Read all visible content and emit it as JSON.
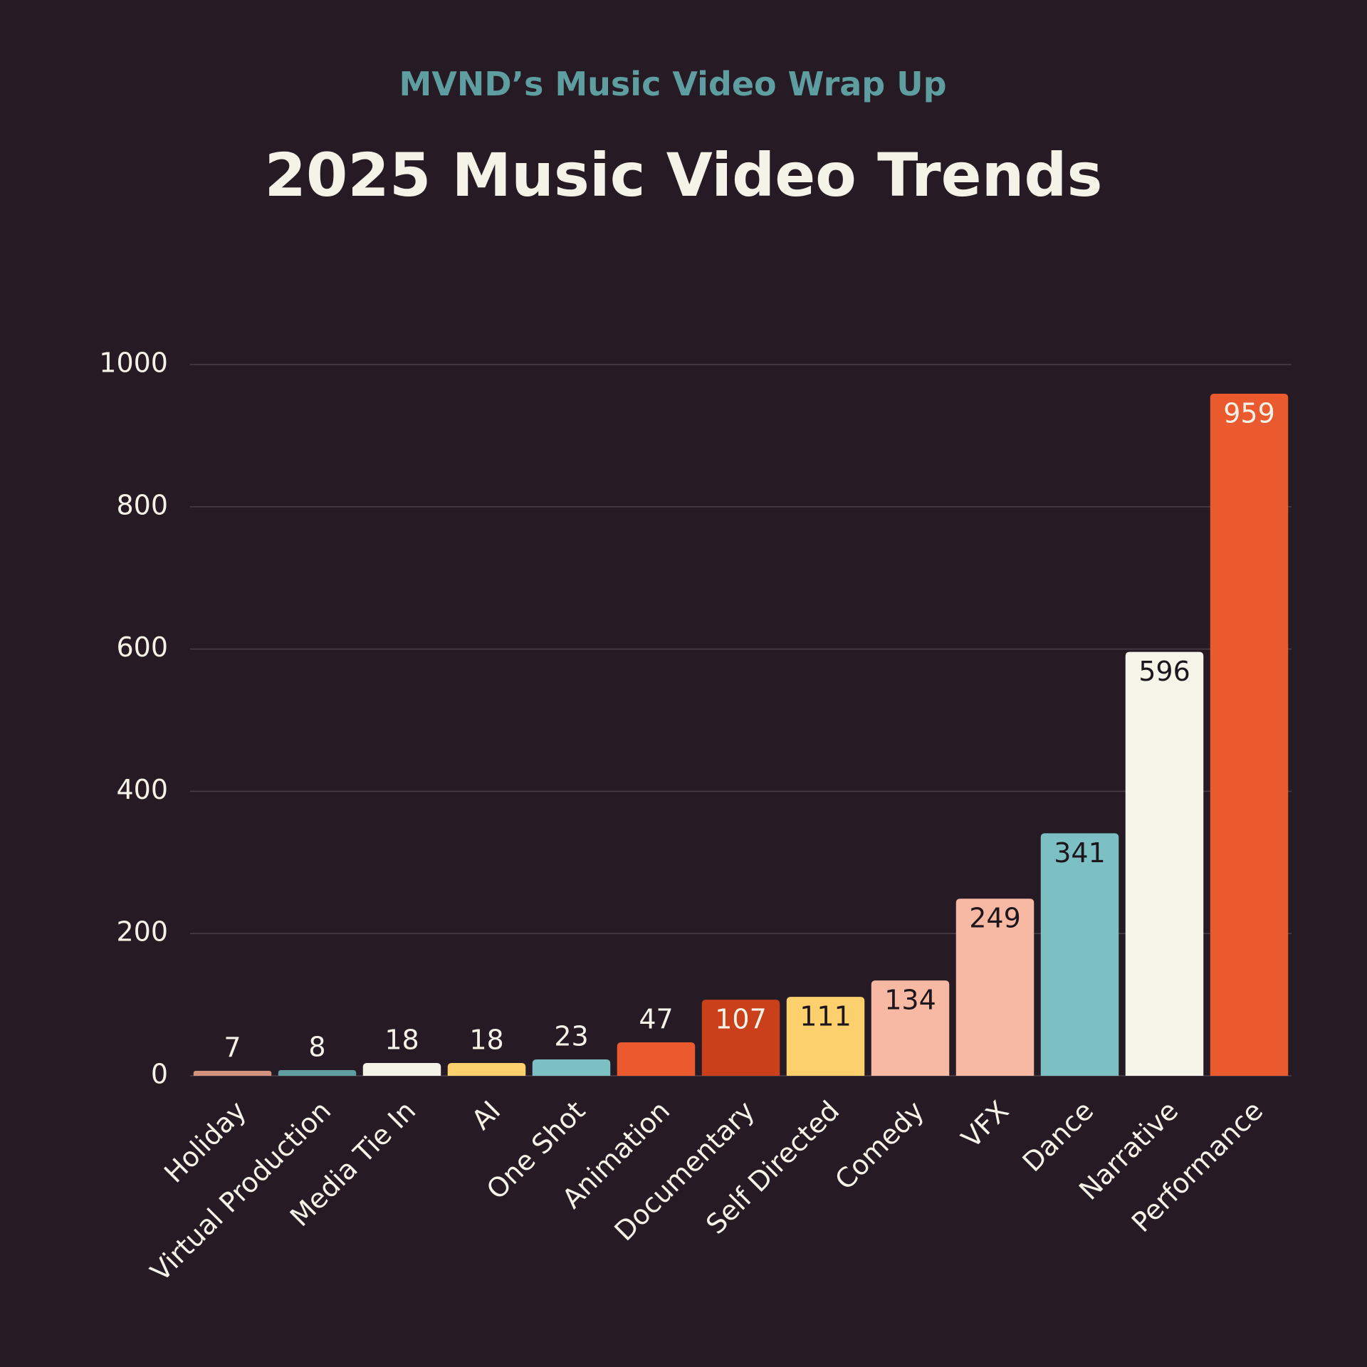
{
  "chart_data": {
    "type": "bar",
    "subtitle": "MVND’s Music Video Wrap Up",
    "title": "2025 Music Video Trends",
    "categories": [
      "Holiday",
      "Virtual Production",
      "Media Tie In",
      "AI",
      "One Shot",
      "Animation",
      "Documentary",
      "Self Directed",
      "Comedy",
      "VFX",
      "Dance",
      "Narrative",
      "Performance"
    ],
    "values": [
      7,
      8,
      18,
      18,
      23,
      47,
      107,
      111,
      134,
      249,
      341,
      596,
      959
    ],
    "colors": [
      "#d4937f",
      "#5e9ea0",
      "#f5f3e7",
      "#fdd06e",
      "#7cc0c4",
      "#eb5a2e",
      "#c9401a",
      "#fdd06e",
      "#f7b9a4",
      "#f7b9a4",
      "#7cc0c4",
      "#f5f5ea",
      "#eb5a2e"
    ],
    "ylim": [
      0,
      1000
    ],
    "yticks": [
      0,
      200,
      400,
      600,
      800,
      1000
    ],
    "grid": true
  }
}
